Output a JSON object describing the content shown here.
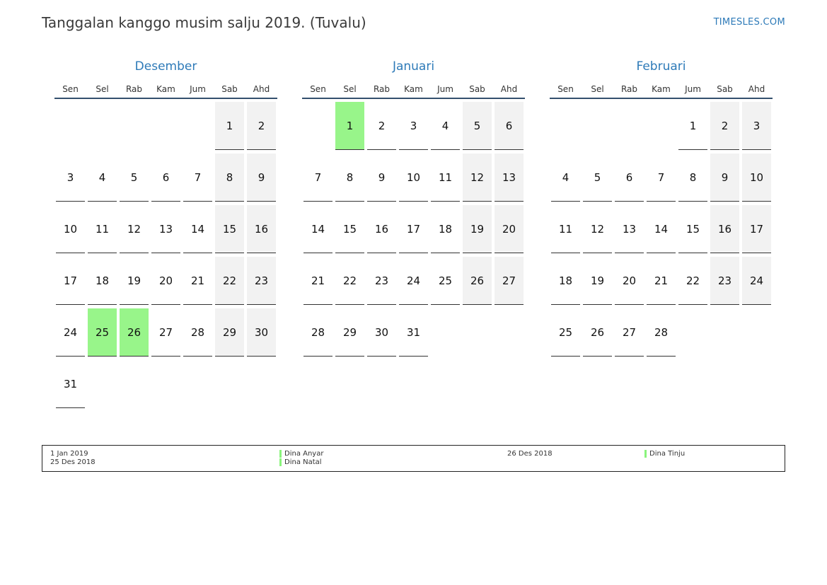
{
  "header": {
    "title": "Tanggalan kanggo musim salju 2019. (Tuvalu)",
    "site": "TIMESLES.COM"
  },
  "weekdays": [
    "Sen",
    "Sel",
    "Rab",
    "Kam",
    "Jum",
    "Sab",
    "Ahd"
  ],
  "months": [
    {
      "name": "Desember",
      "start_offset": 5,
      "days": 31,
      "holidays": [
        25,
        26
      ]
    },
    {
      "name": "Januari",
      "start_offset": 1,
      "days": 31,
      "holidays": [
        1
      ]
    },
    {
      "name": "Februari",
      "start_offset": 4,
      "days": 28,
      "holidays": []
    }
  ],
  "legend": {
    "entries": [
      {
        "date": "1 Jan 2019",
        "name": "Dina Anyar"
      },
      {
        "date": "25 Des 2018",
        "name": "Dina Natal"
      },
      {
        "date": "26 Des 2018",
        "name": "Dina Tinju"
      }
    ]
  },
  "colors": {
    "accent": "#2d7ab8",
    "holiday": "#98f58a",
    "weekend": "#f2f2f2"
  }
}
